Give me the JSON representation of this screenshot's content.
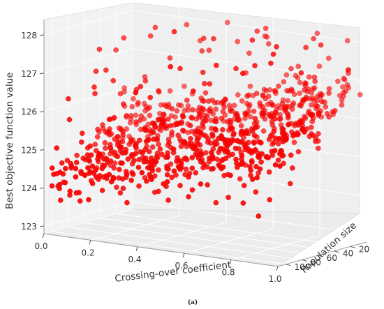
{
  "caption": "(a)",
  "chart_data": {
    "type": "scatter",
    "projection": "3d",
    "title": "",
    "xlabel": "Crossing-over coefficient",
    "ylabel": "Population size",
    "zlabel": "Best objective function value",
    "xlim": [
      0.0,
      1.0
    ],
    "ylim": [
      0,
      110
    ],
    "zlim": [
      122.8,
      128.4
    ],
    "x_ticks": [
      "0.0",
      "0.2",
      "0.4",
      "0.6",
      "0.8",
      "1.0"
    ],
    "y_ticks": [
      "20",
      "40",
      "60",
      "80",
      "100"
    ],
    "z_ticks": [
      "123",
      "124",
      "125",
      "126",
      "127",
      "128"
    ],
    "marker_color": "#ff0000",
    "grid": true,
    "pane_color": "#f2f2f2",
    "point_count_estimate": 900,
    "points": [
      [
        0.02,
        100,
        125.0
      ],
      [
        0.03,
        95,
        124.3
      ],
      [
        0.04,
        90,
        125.7
      ],
      [
        0.05,
        105,
        124.1
      ],
      [
        0.06,
        80,
        125.3
      ],
      [
        0.07,
        98,
        123.9
      ],
      [
        0.08,
        70,
        126.3
      ],
      [
        0.09,
        102,
        124.6
      ],
      [
        0.1,
        85,
        124.8
      ],
      [
        0.11,
        60,
        125.6
      ],
      [
        0.12,
        100,
        123.7
      ],
      [
        0.13,
        75,
        124.5
      ],
      [
        0.14,
        92,
        124.2
      ],
      [
        0.15,
        55,
        126.0
      ],
      [
        0.16,
        88,
        124.9
      ],
      [
        0.17,
        104,
        123.8
      ],
      [
        0.18,
        65,
        125.1
      ],
      [
        0.19,
        96,
        124.4
      ],
      [
        0.2,
        78,
        124.0
      ],
      [
        0.21,
        45,
        126.6
      ],
      [
        0.22,
        99,
        124.7
      ],
      [
        0.23,
        82,
        123.9
      ],
      [
        0.24,
        70,
        124.6
      ],
      [
        0.25,
        100,
        125.2
      ],
      [
        0.26,
        58,
        125.0
      ],
      [
        0.27,
        90,
        124.1
      ],
      [
        0.28,
        35,
        127.2
      ],
      [
        0.29,
        85,
        124.5
      ],
      [
        0.3,
        72,
        124.3
      ],
      [
        0.31,
        97,
        123.8
      ],
      [
        0.32,
        62,
        124.9
      ],
      [
        0.33,
        88,
        124.2
      ],
      [
        0.34,
        50,
        125.4
      ],
      [
        0.35,
        101,
        124.6
      ],
      [
        0.36,
        77,
        124.0
      ],
      [
        0.37,
        40,
        126.2
      ],
      [
        0.38,
        93,
        124.4
      ],
      [
        0.39,
        66,
        124.7
      ],
      [
        0.4,
        84,
        124.1
      ],
      [
        0.41,
        55,
        125.2
      ],
      [
        0.42,
        98,
        124.8
      ],
      [
        0.43,
        30,
        127.5
      ],
      [
        0.44,
        74,
        124.5
      ],
      [
        0.45,
        89,
        124.3
      ],
      [
        0.46,
        46,
        125.6
      ],
      [
        0.47,
        69,
        124.9
      ],
      [
        0.48,
        95,
        124.0
      ],
      [
        0.49,
        58,
        125.0
      ],
      [
        0.5,
        80,
        124.6
      ],
      [
        0.51,
        36,
        126.0
      ],
      [
        0.52,
        92,
        124.4
      ],
      [
        0.53,
        63,
        125.1
      ],
      [
        0.54,
        86,
        124.7
      ],
      [
        0.55,
        42,
        125.8
      ],
      [
        0.56,
        75,
        124.8
      ],
      [
        0.57,
        25,
        127.0
      ],
      [
        0.58,
        99,
        124.2
      ],
      [
        0.59,
        54,
        125.3
      ],
      [
        0.6,
        82,
        124.9
      ],
      [
        0.61,
        33,
        126.5
      ],
      [
        0.62,
        70,
        125.0
      ],
      [
        0.63,
        90,
        124.5
      ],
      [
        0.64,
        48,
        125.5
      ],
      [
        0.65,
        20,
        127.8
      ],
      [
        0.66,
        78,
        124.7
      ],
      [
        0.67,
        60,
        125.2
      ],
      [
        0.68,
        94,
        124.1
      ],
      [
        0.69,
        38,
        126.1
      ],
      [
        0.7,
        85,
        124.8
      ],
      [
        0.71,
        52,
        125.6
      ],
      [
        0.72,
        28,
        126.8
      ],
      [
        0.73,
        72,
        125.0
      ],
      [
        0.74,
        96,
        124.3
      ],
      [
        0.75,
        44,
        125.9
      ],
      [
        0.76,
        65,
        125.3
      ],
      [
        0.77,
        18,
        127.3
      ],
      [
        0.78,
        88,
        124.6
      ],
      [
        0.79,
        56,
        125.5
      ],
      [
        0.8,
        34,
        126.3
      ],
      [
        0.81,
        79,
        124.9
      ],
      [
        0.82,
        47,
        125.7
      ],
      [
        0.83,
        22,
        127.1
      ],
      [
        0.84,
        91,
        124.5
      ],
      [
        0.85,
        62,
        125.4
      ],
      [
        0.86,
        30,
        126.6
      ],
      [
        0.87,
        83,
        125.0
      ],
      [
        0.88,
        50,
        125.8
      ],
      [
        0.89,
        15,
        127.6
      ],
      [
        0.9,
        74,
        125.2
      ],
      [
        0.91,
        40,
        126.2
      ],
      [
        0.92,
        97,
        124.4
      ],
      [
        0.93,
        26,
        126.9
      ],
      [
        0.94,
        67,
        125.5
      ],
      [
        0.95,
        54,
        125.9
      ],
      [
        0.96,
        12,
        128.1
      ],
      [
        0.97,
        86,
        124.8
      ],
      [
        0.98,
        36,
        126.4
      ],
      [
        0.99,
        20,
        127.4
      ],
      [
        1.0,
        60,
        125.6
      ],
      [
        1.0,
        8,
        126.7
      ],
      [
        0.15,
        95,
        124.9
      ],
      [
        0.25,
        85,
        124.3
      ],
      [
        0.35,
        75,
        124.7
      ],
      [
        0.45,
        65,
        124.9
      ],
      [
        0.55,
        55,
        125.3
      ],
      [
        0.65,
        45,
        125.6
      ],
      [
        0.75,
        35,
        126.0
      ],
      [
        0.85,
        25,
        126.4
      ],
      [
        0.95,
        15,
        126.9
      ],
      [
        0.05,
        60,
        126.8
      ],
      [
        0.1,
        40,
        127.6
      ],
      [
        0.2,
        30,
        127.9
      ],
      [
        0.3,
        20,
        128.0
      ],
      [
        0.5,
        15,
        127.7
      ],
      [
        0.6,
        10,
        127.9
      ],
      [
        0.4,
        90,
        125.5
      ],
      [
        0.7,
        70,
        124.6
      ],
      [
        0.8,
        95,
        124.2
      ],
      [
        0.9,
        105,
        124.0
      ],
      [
        0.6,
        100,
        124.4
      ]
    ]
  }
}
